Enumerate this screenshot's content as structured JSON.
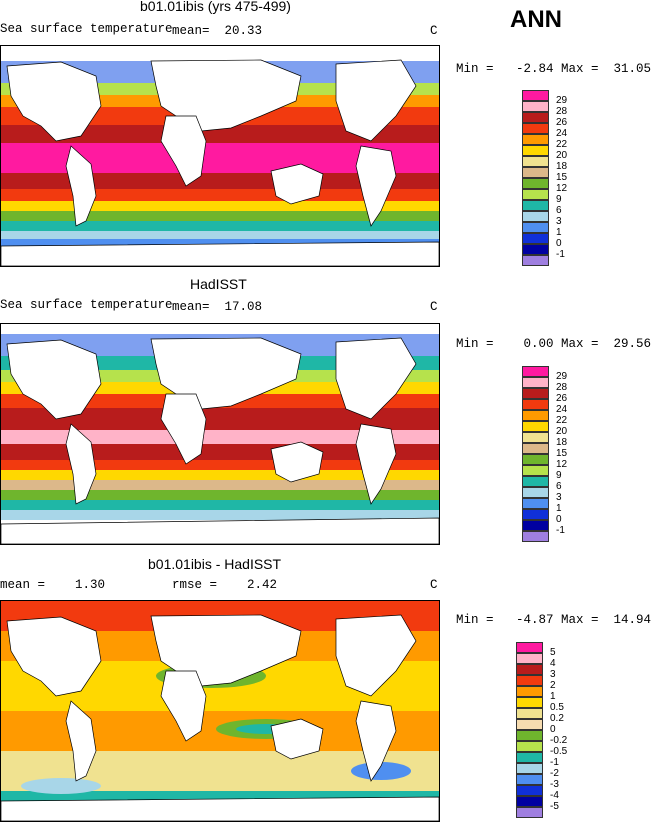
{
  "season": "ANN",
  "panels": [
    {
      "title": "b01.01ibis (yrs 475-499)",
      "left_label": "Sea surface temperature",
      "stat_text": "mean=  20.33",
      "units": "C",
      "minmax": "Min =   -2.84 Max =  31.05"
    },
    {
      "title": "HadISST",
      "left_label": "Sea surface temperature",
      "stat_text": "mean=  17.08",
      "units": "C",
      "minmax": "Min =    0.00 Max =  29.56"
    },
    {
      "title": "b01.01ibis - HadISST",
      "left_label": "mean =    1.30",
      "stat_text": "rmse =    2.42",
      "units": "C",
      "minmax": "Min =   -4.87 Max =  14.94"
    }
  ],
  "chart_data": [
    {
      "type": "heatmap",
      "title": "b01.01ibis (yrs 475-499)",
      "variable": "Sea surface temperature",
      "units": "C",
      "mean": 20.33,
      "min": -2.84,
      "max": 31.05,
      "levels": [
        "29",
        "28",
        "26",
        "24",
        "22",
        "20",
        "18",
        "15",
        "12",
        "9",
        "6",
        "3",
        "1",
        "0",
        "-1"
      ],
      "colors": [
        "#ff1aa0",
        "#ffb3c8",
        "#b81c1c",
        "#f23a0f",
        "#ff9a00",
        "#ffd800",
        "#f0e290",
        "#dcb88a",
        "#6fb52d",
        "#b6e24c",
        "#1fb7a6",
        "#a8d6e8",
        "#4f8ff0",
        "#1030d8",
        "#0000a0",
        "#9f7fe0"
      ]
    },
    {
      "type": "heatmap",
      "title": "HadISST",
      "variable": "Sea surface temperature",
      "units": "C",
      "mean": 17.08,
      "min": 0.0,
      "max": 29.56,
      "levels": [
        "29",
        "28",
        "26",
        "24",
        "22",
        "20",
        "18",
        "15",
        "12",
        "9",
        "6",
        "3",
        "1",
        "0",
        "-1"
      ],
      "colors": [
        "#ff1aa0",
        "#ffb3c8",
        "#b81c1c",
        "#f23a0f",
        "#ff9a00",
        "#ffd800",
        "#f0e290",
        "#dcb88a",
        "#6fb52d",
        "#b6e24c",
        "#1fb7a6",
        "#a8d6e8",
        "#4f8ff0",
        "#1030d8",
        "#0000a0",
        "#9f7fe0"
      ]
    },
    {
      "type": "heatmap",
      "title": "b01.01ibis - HadISST",
      "units": "C",
      "mean": 1.3,
      "rmse": 2.42,
      "min": -4.87,
      "max": 14.94,
      "levels": [
        "5",
        "4",
        "3",
        "2",
        "1",
        "0.5",
        "0.2",
        "0",
        "-0.2",
        "-0.5",
        "-1",
        "-2",
        "-3",
        "-4",
        "-5"
      ],
      "colors": [
        "#ff1aa0",
        "#ffb3c8",
        "#b81c1c",
        "#f23a0f",
        "#ff9a00",
        "#ffd800",
        "#f0e290",
        "#f6dcb0",
        "#6fb52d",
        "#b6e24c",
        "#1fb7a6",
        "#a8d6e8",
        "#4f8ff0",
        "#1030d8",
        "#0000a0",
        "#9f7fe0"
      ]
    }
  ]
}
